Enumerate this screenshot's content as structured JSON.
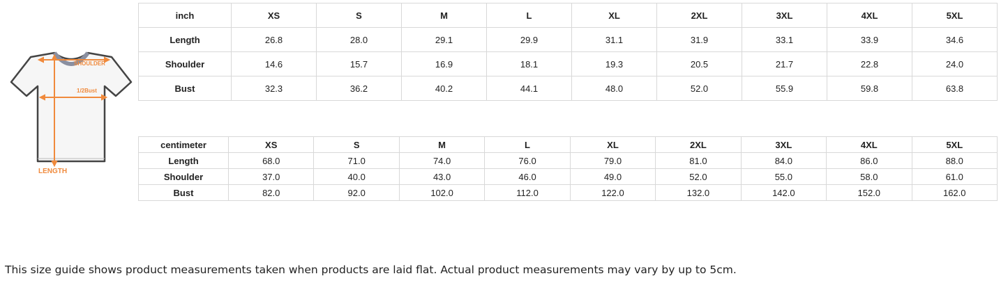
{
  "diagram": {
    "shoulder_label": "SHOULDER",
    "bust_label": "1/2Bust",
    "length_label": "LENGTH",
    "accent": "#f08a3c"
  },
  "inch_table": {
    "headers": [
      "inch",
      "XS",
      "S",
      "M",
      "L",
      "XL",
      "2XL",
      "3XL",
      "4XL",
      "5XL"
    ],
    "rows": [
      {
        "label": "Length",
        "values": [
          "26.8",
          "28.0",
          "29.1",
          "29.9",
          "31.1",
          "31.9",
          "33.1",
          "33.9",
          "34.6"
        ]
      },
      {
        "label": "Shoulder",
        "values": [
          "14.6",
          "15.7",
          "16.9",
          "18.1",
          "19.3",
          "20.5",
          "21.7",
          "22.8",
          "24.0"
        ]
      },
      {
        "label": "Bust",
        "values": [
          "32.3",
          "36.2",
          "40.2",
          "44.1",
          "48.0",
          "52.0",
          "55.9",
          "59.8",
          "63.8"
        ]
      }
    ]
  },
  "cm_table": {
    "headers": [
      "centimeter",
      "XS",
      "S",
      "M",
      "L",
      "XL",
      "2XL",
      "3XL",
      "4XL",
      "5XL"
    ],
    "rows": [
      {
        "label": "Length",
        "values": [
          "68.0",
          "71.0",
          "74.0",
          "76.0",
          "79.0",
          "81.0",
          "84.0",
          "86.0",
          "88.0"
        ]
      },
      {
        "label": "Shoulder",
        "values": [
          "37.0",
          "40.0",
          "43.0",
          "46.0",
          "49.0",
          "52.0",
          "55.0",
          "58.0",
          "61.0"
        ]
      },
      {
        "label": "Bust",
        "values": [
          "82.0",
          "92.0",
          "102.0",
          "112.0",
          "122.0",
          "132.0",
          "142.0",
          "152.0",
          "162.0"
        ]
      }
    ]
  },
  "note": "This size guide shows product measurements taken when products are laid flat. Actual product measurements may vary by up to 5cm."
}
